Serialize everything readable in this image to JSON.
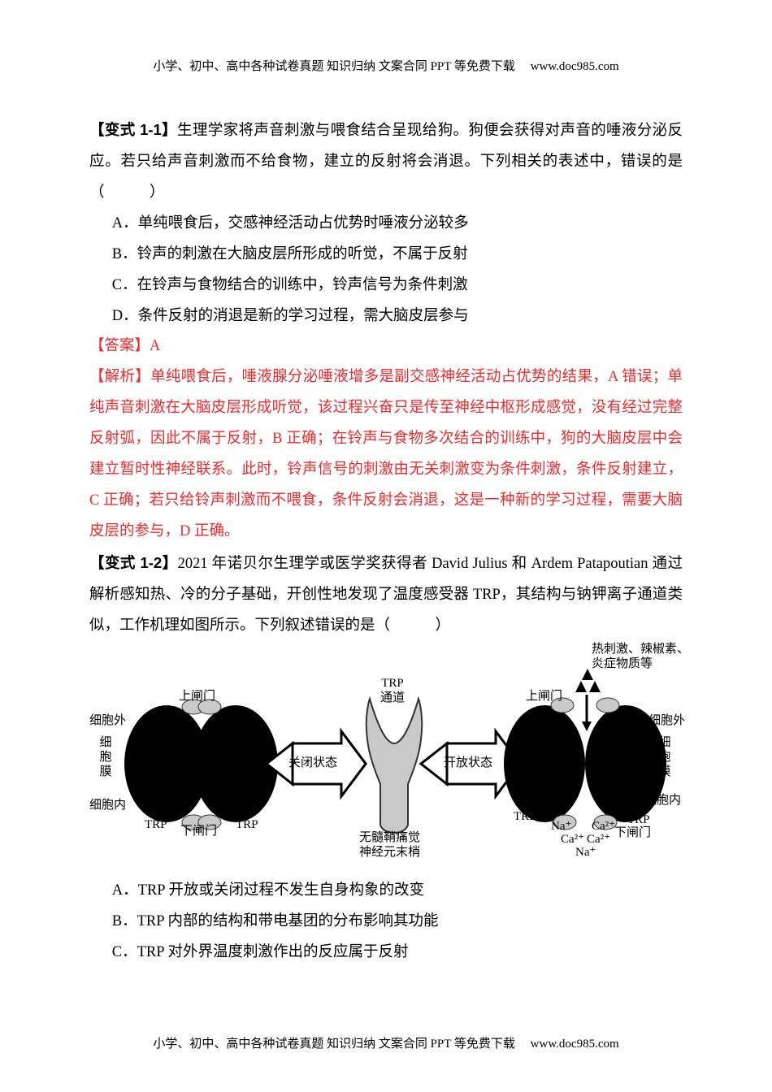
{
  "header": {
    "text_cn": "小学、初中、高中各种试卷真题 知识归纳 文案合同 PPT 等免费下载",
    "url": "www.doc985.com"
  },
  "q1": {
    "tag": "【变式 1-1】",
    "stem": "生理学家将声音刺激与喂食结合呈现给狗。狗便会获得对声音的唾液分泌反应。若只给声音刺激而不给食物，建立的反射将会消退。下列相关的表述中，错误的是（　　　）",
    "options": {
      "A": "A．单纯喂食后，交感神经活动占优势时唾液分泌较多",
      "B": "B．铃声的刺激在大脑皮层所形成的听觉，不属于反射",
      "C": "C．在铃声与食物结合的训练中，铃声信号为条件刺激",
      "D": "D．条件反射的消退是新的学习过程，需大脑皮层参与"
    },
    "answer_label": "【答案】",
    "answer": "A",
    "analysis_label": "【解析】",
    "analysis": "单纯喂食后，唾液腺分泌唾液增多是副交感神经活动占优势的结果，A 错误；单纯声音刺激在大脑皮层形成听觉，该过程兴奋只是传至神经中枢形成感觉，没有经过完整反射弧，因此不属于反射，B 正确；在铃声与食物多次结合的训练中，狗的大脑皮层中会建立暂时性神经联系。此时，铃声信号的刺激由无关刺激变为条件刺激，条件反射建立，C 正确；若只给铃声刺激而不喂食，条件反射会消退，这是一种新的学习过程，需要大脑皮层的参与，D 正确。"
  },
  "q2": {
    "tag": "【变式 1-2】",
    "stem_before": "2021 年诺贝尔生理学或医学奖获得者 David Julius 和 Ardem Patapoutian 通过解析感知热、冷的分子基础，开创性地发现了温度感受器 TRP，其结构与钠钾离子通道类似，工作机理如图所示。下列叙述错误的是（　　　）",
    "options": {
      "A": "A．TRP 开放或关闭过程不发生自身构象的改变",
      "B": "B．TRP 内部的结构和带电基团的分布影响其功能",
      "C": "C．TRP 对外界温度刺激作出的反应属于反射"
    }
  },
  "figure": {
    "colors": {
      "black": "#000000",
      "grey_fill": "#c9c9c9",
      "grey_stroke": "#333333",
      "white": "#ffffff"
    },
    "labels": {
      "heat_stim": "热刺激、辣椒素、\n炎症物质等",
      "trp_channel": "TRP\n通道",
      "upper_gate": "上闸门",
      "lower_gate": "下闸门",
      "extracellular": "细胞外",
      "intracellular": "细胞内",
      "membrane": "细\n胞\n膜",
      "trp": "TRP",
      "closed": "关闭状态",
      "open": "开放状态",
      "nerve": "无髓鞘痛觉\n神经元末梢",
      "na": "Na⁺",
      "ca": "Ca²⁺"
    }
  },
  "footer": {
    "text_cn": "小学、初中、高中各种试卷真题 知识归纳 文案合同 PPT 等免费下载",
    "url": "www.doc985.com"
  }
}
